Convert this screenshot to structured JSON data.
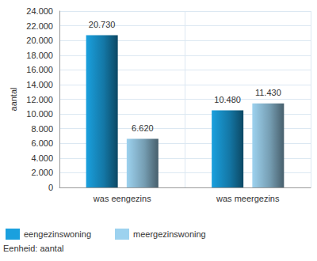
{
  "chart_data": {
    "type": "bar",
    "y_label": "aantal",
    "annotation": "Eenheid: aantal",
    "categories": [
      "was eengezins",
      "was meergezins"
    ],
    "series": [
      {
        "name": "eengezinswoning",
        "color": "#1aa0de",
        "values": [
          20730,
          10480
        ],
        "value_labels": [
          "20.730",
          "10.480"
        ]
      },
      {
        "name": "meergezinswoning",
        "color": "#9dd2ef",
        "values": [
          6620,
          11430
        ],
        "value_labels": [
          "6.620",
          "11.430"
        ]
      }
    ],
    "ylim": [
      0,
      24000
    ],
    "yticks": [
      0,
      {
        "value": 2000,
        "label": "2.000"
      },
      {
        "value": 4000,
        "label": "4.000"
      },
      {
        "value": 6000,
        "label": "6.000"
      },
      {
        "value": 8000,
        "label": "8.000"
      },
      {
        "value": 10000,
        "label": "10.000"
      },
      {
        "value": 12000,
        "label": "12.000"
      },
      {
        "value": 14000,
        "label": "14.000"
      },
      {
        "value": 16000,
        "label": "16.000"
      },
      {
        "value": 18000,
        "label": "18.000"
      },
      {
        "value": 20000,
        "label": "20.000"
      },
      {
        "value": 22000,
        "label": "22.000"
      },
      {
        "value": 24000,
        "label": "24.000"
      }
    ],
    "grid": true,
    "data_labels": true,
    "legend": "bottom-left"
  }
}
